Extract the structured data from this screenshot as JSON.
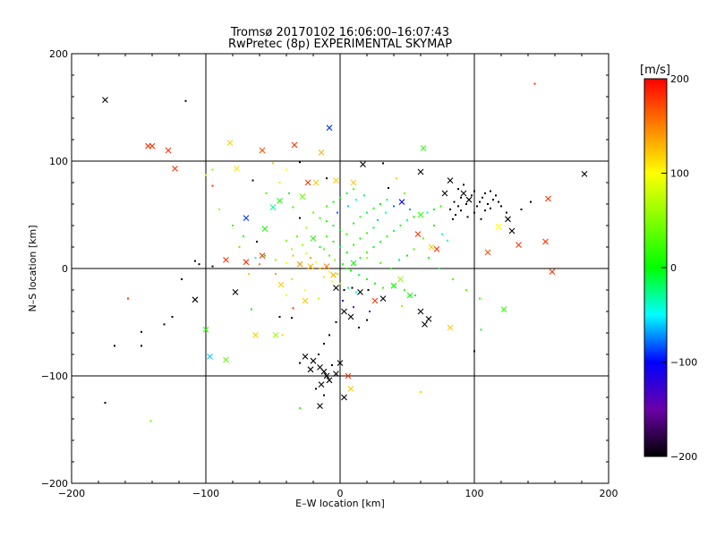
{
  "chart_data": {
    "type": "scatter",
    "title_line1": "Tromsø 20170102 16:06:00–16:07:43",
    "title_line2": "RwPretec (8p) EXPERIMENTAL SKYMAP",
    "xlabel": "E–W location [km]",
    "ylabel": "N–S location [km]",
    "xlim": [
      -200,
      200
    ],
    "ylim": [
      -200,
      200
    ],
    "xticks": [
      "−200",
      "−100",
      "0",
      "100",
      "200"
    ],
    "yticks": [
      "−200",
      "−100",
      "0",
      "100",
      "200"
    ],
    "xtick_values": [
      -200,
      -100,
      0,
      100,
      200
    ],
    "ytick_values": [
      -200,
      -100,
      0,
      100,
      200
    ],
    "grid_lines": [
      -100,
      0,
      100
    ],
    "colorbar": {
      "unit": "[m/s]",
      "min": -200,
      "max": 200,
      "ticks": [
        "200",
        "100",
        "0",
        "−100",
        "−200"
      ],
      "tick_values": [
        200,
        100,
        0,
        -100,
        -200
      ]
    },
    "marker_types": [
      "dot",
      "cross"
    ],
    "points": [
      [
        -175,
        157,
        -200,
        "x"
      ],
      [
        -115,
        156,
        -200,
        "d"
      ],
      [
        -143,
        114,
        180,
        "x"
      ],
      [
        -140,
        114,
        180,
        "x"
      ],
      [
        -128,
        110,
        180,
        "x"
      ],
      [
        -123,
        93,
        180,
        "x"
      ],
      [
        -82,
        117,
        120,
        "x"
      ],
      [
        -77,
        93,
        110,
        "x"
      ],
      [
        -58,
        110,
        170,
        "x"
      ],
      [
        -34,
        115,
        180,
        "x"
      ],
      [
        -30,
        99,
        -200,
        "d"
      ],
      [
        -14,
        108,
        130,
        "x"
      ],
      [
        -24,
        80,
        180,
        "x"
      ],
      [
        -18,
        80,
        120,
        "x"
      ],
      [
        -10,
        84,
        -200,
        "d"
      ],
      [
        -3,
        82,
        120,
        "x"
      ],
      [
        10,
        80,
        120,
        "x"
      ],
      [
        17,
        97,
        -200,
        "x"
      ],
      [
        32,
        98,
        -200,
        "d"
      ],
      [
        -8,
        131,
        -90,
        "x"
      ],
      [
        -100,
        87,
        90,
        "d"
      ],
      [
        -95,
        77,
        180,
        "d"
      ],
      [
        -65,
        82,
        -200,
        "d"
      ],
      [
        -45,
        80,
        110,
        "d"
      ],
      [
        -55,
        70,
        30,
        "d"
      ],
      [
        -45,
        63,
        10,
        "x"
      ],
      [
        -38,
        70,
        -10,
        "d"
      ],
      [
        -28,
        67,
        40,
        "x"
      ],
      [
        -50,
        57,
        -30,
        "x"
      ],
      [
        -70,
        47,
        -90,
        "x"
      ],
      [
        -56,
        37,
        10,
        "x"
      ],
      [
        -35,
        57,
        20,
        "d"
      ],
      [
        -30,
        47,
        -200,
        "d"
      ],
      [
        -25,
        38,
        60,
        "d"
      ],
      [
        -20,
        28,
        10,
        "x"
      ],
      [
        -15,
        20,
        -10,
        "d"
      ],
      [
        -85,
        8,
        180,
        "x"
      ],
      [
        -70,
        6,
        180,
        "x"
      ],
      [
        -63,
        10,
        -40,
        "d"
      ],
      [
        -56,
        12,
        0,
        "d"
      ],
      [
        -48,
        8,
        60,
        "d"
      ],
      [
        -40,
        5,
        100,
        "d"
      ],
      [
        -30,
        4,
        140,
        "x"
      ],
      [
        -22,
        2,
        130,
        "x"
      ],
      [
        -15,
        0,
        120,
        "d"
      ],
      [
        -8,
        -3,
        90,
        "d"
      ],
      [
        -2,
        -5,
        60,
        "d"
      ],
      [
        5,
        0,
        20,
        "d"
      ],
      [
        10,
        5,
        0,
        "x"
      ],
      [
        15,
        10,
        10,
        "d"
      ],
      [
        20,
        15,
        30,
        "d"
      ],
      [
        25,
        20,
        -10,
        "d"
      ],
      [
        30,
        25,
        0,
        "d"
      ],
      [
        35,
        30,
        20,
        "d"
      ],
      [
        40,
        35,
        -20,
        "d"
      ],
      [
        45,
        40,
        10,
        "d"
      ],
      [
        50,
        45,
        -30,
        "d"
      ],
      [
        55,
        48,
        0,
        "d"
      ],
      [
        60,
        50,
        20,
        "x"
      ],
      [
        65,
        52,
        -40,
        "d"
      ],
      [
        70,
        55,
        0,
        "d"
      ],
      [
        75,
        58,
        10,
        "d"
      ],
      [
        -20,
        52,
        40,
        "d"
      ],
      [
        -15,
        47,
        20,
        "d"
      ],
      [
        -10,
        44,
        10,
        "d"
      ],
      [
        -5,
        40,
        -10,
        "d"
      ],
      [
        0,
        36,
        0,
        "d"
      ],
      [
        5,
        32,
        20,
        "d"
      ],
      [
        -10,
        30,
        30,
        "d"
      ],
      [
        -5,
        25,
        10,
        "d"
      ],
      [
        0,
        20,
        -20,
        "d"
      ],
      [
        5,
        15,
        0,
        "d"
      ],
      [
        10,
        22,
        10,
        "d"
      ],
      [
        15,
        28,
        0,
        "d"
      ],
      [
        20,
        33,
        20,
        "d"
      ],
      [
        25,
        38,
        -10,
        "d"
      ],
      [
        10,
        42,
        0,
        "d"
      ],
      [
        15,
        48,
        20,
        "d"
      ],
      [
        20,
        52,
        -20,
        "d"
      ],
      [
        25,
        56,
        10,
        "d"
      ],
      [
        30,
        60,
        0,
        "d"
      ],
      [
        35,
        64,
        -20,
        "d"
      ],
      [
        -10,
        58,
        20,
        "d"
      ],
      [
        -5,
        62,
        0,
        "d"
      ],
      [
        0,
        66,
        10,
        "d"
      ],
      [
        5,
        70,
        -10,
        "d"
      ],
      [
        10,
        74,
        20,
        "d"
      ],
      [
        -12,
        18,
        40,
        "d"
      ],
      [
        -8,
        12,
        30,
        "d"
      ],
      [
        -4,
        8,
        50,
        "d"
      ],
      [
        2,
        4,
        10,
        "d"
      ],
      [
        8,
        -2,
        0,
        "d"
      ],
      [
        14,
        -6,
        -20,
        "d"
      ],
      [
        20,
        -10,
        10,
        "d"
      ],
      [
        26,
        -14,
        0,
        "d"
      ],
      [
        32,
        -18,
        20,
        "d"
      ],
      [
        -25,
        14,
        80,
        "d"
      ],
      [
        -28,
        22,
        60,
        "d"
      ],
      [
        -32,
        30,
        40,
        "d"
      ],
      [
        -36,
        18,
        70,
        "d"
      ],
      [
        -40,
        26,
        50,
        "d"
      ],
      [
        -18,
        6,
        100,
        "d"
      ],
      [
        -12,
        -8,
        110,
        "d"
      ],
      [
        -6,
        -12,
        90,
        "d"
      ],
      [
        0,
        -14,
        70,
        "d"
      ],
      [
        6,
        -18,
        -30,
        "d"
      ],
      [
        12,
        -22,
        -50,
        "d"
      ],
      [
        -3,
        -18,
        -200,
        "x"
      ],
      [
        3,
        -20,
        -200,
        "d"
      ],
      [
        9,
        -18,
        -200,
        "d"
      ],
      [
        15,
        -22,
        -200,
        "x"
      ],
      [
        21,
        -20,
        -200,
        "d"
      ],
      [
        85,
        62,
        -200,
        "d"
      ],
      [
        88,
        58,
        -200,
        "d"
      ],
      [
        90,
        66,
        -200,
        "d"
      ],
      [
        92,
        70,
        -200,
        "x"
      ],
      [
        94,
        60,
        -200,
        "d"
      ],
      [
        96,
        64,
        -200,
        "x"
      ],
      [
        98,
        68,
        -200,
        "d"
      ],
      [
        100,
        72,
        -200,
        "d"
      ],
      [
        102,
        58,
        -200,
        "d"
      ],
      [
        104,
        62,
        -200,
        "d"
      ],
      [
        106,
        66,
        -200,
        "d"
      ],
      [
        108,
        54,
        -200,
        "d"
      ],
      [
        110,
        60,
        -200,
        "d"
      ],
      [
        112,
        56,
        -200,
        "d"
      ],
      [
        114,
        64,
        -200,
        "d"
      ],
      [
        116,
        68,
        -200,
        "d"
      ],
      [
        86,
        50,
        -200,
        "d"
      ],
      [
        90,
        54,
        -200,
        "d"
      ],
      [
        95,
        48,
        -200,
        "d"
      ],
      [
        100,
        52,
        -200,
        "d"
      ],
      [
        105,
        46,
        -200,
        "d"
      ],
      [
        82,
        55,
        -200,
        "d"
      ],
      [
        84,
        46,
        -200,
        "d"
      ],
      [
        88,
        74,
        -200,
        "d"
      ],
      [
        92,
        78,
        -200,
        "d"
      ],
      [
        82,
        82,
        -200,
        "x"
      ],
      [
        78,
        70,
        -200,
        "x"
      ],
      [
        108,
        70,
        -200,
        "d"
      ],
      [
        112,
        72,
        -200,
        "d"
      ],
      [
        118,
        62,
        -200,
        "d"
      ],
      [
        120,
        58,
        -200,
        "d"
      ],
      [
        124,
        52,
        -200,
        "d"
      ],
      [
        125,
        46,
        -200,
        "x"
      ],
      [
        128,
        35,
        -200,
        "x"
      ],
      [
        135,
        55,
        -200,
        "d"
      ],
      [
        142,
        62,
        -200,
        "d"
      ],
      [
        145,
        172,
        180,
        "d"
      ],
      [
        182,
        88,
        -200,
        "x"
      ],
      [
        155,
        65,
        180,
        "x"
      ],
      [
        153,
        25,
        180,
        "x"
      ],
      [
        133,
        22,
        180,
        "x"
      ],
      [
        118,
        39,
        100,
        "x"
      ],
      [
        110,
        15,
        170,
        "x"
      ],
      [
        158,
        -3,
        180,
        "x"
      ],
      [
        122,
        -38,
        20,
        "x"
      ],
      [
        105,
        -57,
        -10,
        "d"
      ],
      [
        100,
        -77,
        -200,
        "d"
      ],
      [
        82,
        -55,
        120,
        "x"
      ],
      [
        66,
        -47,
        -200,
        "x"
      ],
      [
        63,
        -52,
        -200,
        "x"
      ],
      [
        60,
        -40,
        -200,
        "x"
      ],
      [
        52,
        -25,
        0,
        "x"
      ],
      [
        46,
        -35,
        60,
        "d"
      ],
      [
        40,
        -16,
        0,
        "x"
      ],
      [
        32,
        -28,
        -200,
        "x"
      ],
      [
        26,
        -30,
        180,
        "x"
      ],
      [
        20,
        -48,
        -200,
        "d"
      ],
      [
        14,
        -55,
        -200,
        "d"
      ],
      [
        8,
        -45,
        -200,
        "x"
      ],
      [
        3,
        -40,
        -200,
        "x"
      ],
      [
        -3,
        -50,
        -200,
        "d"
      ],
      [
        -8,
        -62,
        -200,
        "d"
      ],
      [
        -12,
        -70,
        -200,
        "d"
      ],
      [
        -16,
        -80,
        -200,
        "d"
      ],
      [
        -20,
        -86,
        -200,
        "x"
      ],
      [
        -15,
        -92,
        -200,
        "x"
      ],
      [
        -12,
        -96,
        -200,
        "x"
      ],
      [
        -10,
        -100,
        -200,
        "x"
      ],
      [
        -8,
        -104,
        -200,
        "x"
      ],
      [
        -14,
        -108,
        -200,
        "x"
      ],
      [
        -18,
        -112,
        -200,
        "d"
      ],
      [
        -12,
        -118,
        -200,
        "d"
      ],
      [
        -15,
        -128,
        -200,
        "x"
      ],
      [
        -6,
        -90,
        -200,
        "d"
      ],
      [
        -3,
        -98,
        -200,
        "x"
      ],
      [
        0,
        -88,
        -200,
        "x"
      ],
      [
        3,
        -120,
        -200,
        "x"
      ],
      [
        6,
        -100,
        180,
        "x"
      ],
      [
        8,
        -112,
        120,
        "x"
      ],
      [
        -22,
        -94,
        -200,
        "x"
      ],
      [
        -26,
        -82,
        -200,
        "x"
      ],
      [
        -30,
        -88,
        -200,
        "d"
      ],
      [
        -85,
        -85,
        40,
        "x"
      ],
      [
        -97,
        -82,
        -60,
        "x"
      ],
      [
        -100,
        -57,
        20,
        "x"
      ],
      [
        -63,
        -62,
        120,
        "x"
      ],
      [
        -48,
        -62,
        60,
        "x"
      ],
      [
        -45,
        -45,
        -200,
        "d"
      ],
      [
        -35,
        -37,
        180,
        "d"
      ],
      [
        -26,
        -30,
        120,
        "x"
      ],
      [
        -78,
        -22,
        -200,
        "x"
      ],
      [
        -108,
        -29,
        -200,
        "x"
      ],
      [
        -125,
        -45,
        -200,
        "d"
      ],
      [
        -131,
        -52,
        -200,
        "d"
      ],
      [
        -148,
        -59,
        -200,
        "d"
      ],
      [
        -148,
        -72,
        -200,
        "d"
      ],
      [
        -168,
        -72,
        -200,
        "d"
      ],
      [
        -175,
        -125,
        -200,
        "d"
      ],
      [
        -158,
        -28,
        180,
        "d"
      ],
      [
        -141,
        -142,
        40,
        "d"
      ],
      [
        -108,
        7,
        -200,
        "d"
      ],
      [
        -105,
        4,
        -200,
        "d"
      ],
      [
        -118,
        -10,
        -200,
        "d"
      ],
      [
        -95,
        2,
        -200,
        "d"
      ],
      [
        -62,
        25,
        -200,
        "d"
      ],
      [
        -58,
        12,
        180,
        "x"
      ],
      [
        -48,
        -5,
        140,
        "d"
      ],
      [
        -44,
        -15,
        120,
        "x"
      ],
      [
        -40,
        -25,
        90,
        "d"
      ],
      [
        -36,
        -10,
        70,
        "d"
      ],
      [
        45,
        -10,
        60,
        "x"
      ],
      [
        48,
        -20,
        20,
        "d"
      ],
      [
        56,
        -25,
        0,
        "d"
      ],
      [
        58,
        32,
        180,
        "x"
      ],
      [
        62,
        28,
        30,
        "d"
      ],
      [
        68,
        20,
        120,
        "x"
      ],
      [
        72,
        18,
        180,
        "x"
      ],
      [
        60,
        90,
        -200,
        "x"
      ],
      [
        62,
        112,
        20,
        "x"
      ],
      [
        60,
        -115,
        120,
        "d"
      ],
      [
        -30,
        -130,
        20,
        "d"
      ],
      [
        -43,
        -62,
        120,
        "d"
      ],
      [
        -10,
        2,
        150,
        "x"
      ],
      [
        -5,
        -6,
        130,
        "x"
      ],
      [
        -22,
        10,
        140,
        "d"
      ],
      [
        20,
        10,
        60,
        "d"
      ],
      [
        30,
        5,
        40,
        "d"
      ],
      [
        38,
        0,
        20,
        "d"
      ],
      [
        44,
        8,
        -20,
        "d"
      ],
      [
        50,
        12,
        0,
        "d"
      ],
      [
        55,
        18,
        30,
        "d"
      ],
      [
        28,
        45,
        -60,
        "d"
      ],
      [
        34,
        52,
        -40,
        "d"
      ],
      [
        40,
        58,
        -80,
        "d"
      ],
      [
        46,
        62,
        -100,
        "x"
      ],
      [
        52,
        55,
        -70,
        "d"
      ],
      [
        -2,
        52,
        -80,
        "d"
      ],
      [
        6,
        58,
        -60,
        "d"
      ],
      [
        12,
        64,
        -40,
        "d"
      ],
      [
        18,
        68,
        -20,
        "d"
      ],
      [
        -40,
        92,
        100,
        "d"
      ],
      [
        -50,
        98,
        120,
        "d"
      ],
      [
        -35,
        12,
        130,
        "d"
      ],
      [
        -60,
        4,
        150,
        "d"
      ],
      [
        -68,
        -5,
        120,
        "d"
      ],
      [
        -26,
        -20,
        100,
        "d"
      ],
      [
        -16,
        -28,
        80,
        "d"
      ],
      [
        2,
        -30,
        -120,
        "d"
      ],
      [
        10,
        -36,
        -140,
        "d"
      ],
      [
        22,
        -40,
        -150,
        "d"
      ],
      [
        -36,
        -46,
        -200,
        "d"
      ],
      [
        -66,
        -38,
        0,
        "d"
      ],
      [
        -95,
        92,
        50,
        "d"
      ],
      [
        -90,
        55,
        60,
        "d"
      ],
      [
        -80,
        40,
        20,
        "d"
      ],
      [
        -75,
        20,
        40,
        "d"
      ],
      [
        -72,
        30,
        -10,
        "d"
      ],
      [
        36,
        75,
        -200,
        "d"
      ],
      [
        42,
        84,
        120,
        "d"
      ],
      [
        48,
        70,
        40,
        "d"
      ],
      [
        70,
        40,
        10,
        "d"
      ],
      [
        76,
        32,
        -50,
        "d"
      ],
      [
        80,
        26,
        -30,
        "d"
      ],
      [
        66,
        10,
        10,
        "d"
      ],
      [
        74,
        0,
        -20,
        "d"
      ],
      [
        84,
        -10,
        30,
        "d"
      ],
      [
        94,
        -20,
        40,
        "d"
      ],
      [
        104,
        -28,
        20,
        "d"
      ]
    ]
  }
}
